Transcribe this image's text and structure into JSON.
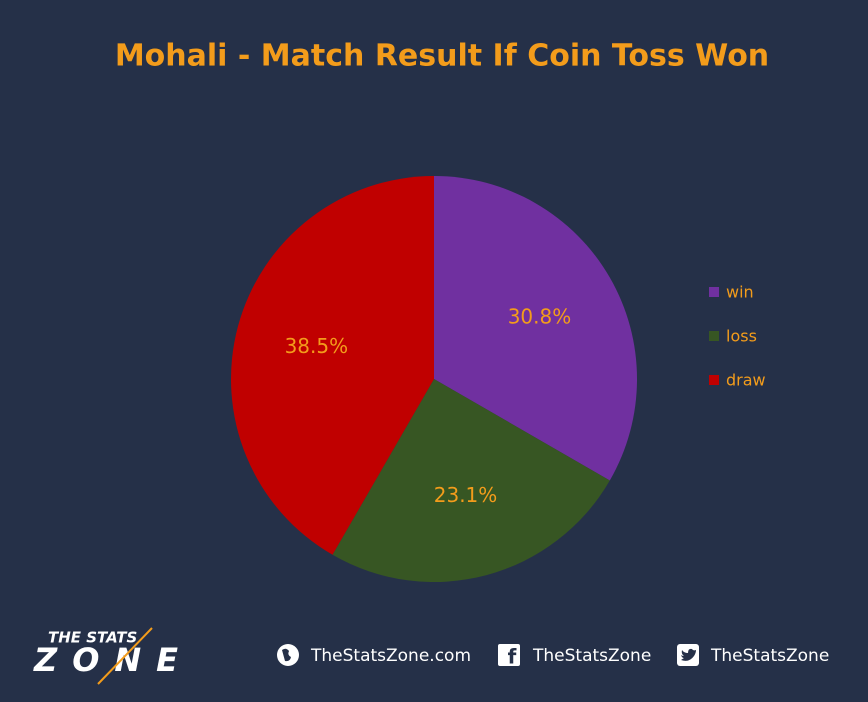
{
  "chart_data": {
    "type": "pie",
    "title": "Mohali - Match Result If Coin Toss Won",
    "categories": [
      "win",
      "loss",
      "draw"
    ],
    "values": [
      30.8,
      23.1,
      38.5
    ],
    "value_labels": [
      "30.8%",
      "23.1%",
      "38.5%"
    ],
    "colors": [
      "#7030a0",
      "#375623",
      "#c00000"
    ],
    "legend": "right"
  },
  "footer": {
    "logo_top": "THE STATS",
    "logo_bottom": "ZONE",
    "links": [
      "TheStatsZone.com",
      "TheStatsZone",
      "TheStatsZone"
    ]
  }
}
